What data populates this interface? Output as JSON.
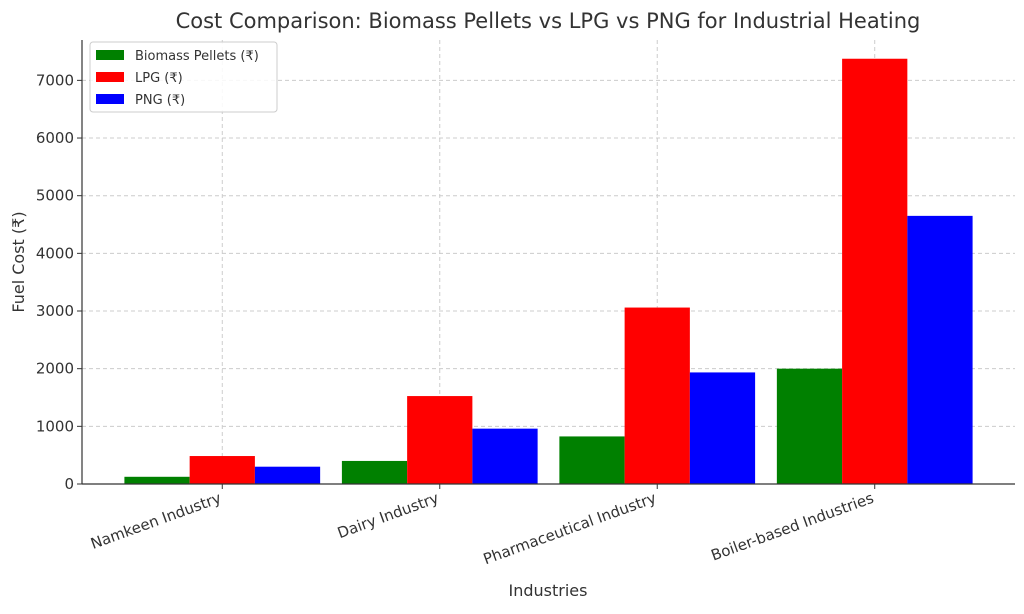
{
  "chart_data": {
    "type": "bar",
    "title": "Cost Comparison: Biomass Pellets vs LPG vs PNG for Industrial Heating",
    "xlabel": "Industries",
    "ylabel": "Fuel Cost (₹)",
    "categories": [
      "Namkeen Industry",
      "Dairy Industry",
      "Pharmaceutical Industry",
      "Boiler-based Industries"
    ],
    "series": [
      {
        "name": "Biomass Pellets (₹)",
        "color": "#008000",
        "values": [
          125,
          400,
          825,
          2000
        ]
      },
      {
        "name": "LPG (₹)",
        "color": "#ff0000",
        "values": [
          485,
          1525,
          3060,
          7375
        ]
      },
      {
        "name": "PNG (₹)",
        "color": "#0000ff",
        "values": [
          300,
          960,
          1935,
          4650
        ]
      }
    ],
    "ylim": [
      0,
      7700
    ],
    "yticks": [
      0,
      1000,
      2000,
      3000,
      4000,
      5000,
      6000,
      7000
    ],
    "grid": true,
    "legend": "top-left"
  }
}
